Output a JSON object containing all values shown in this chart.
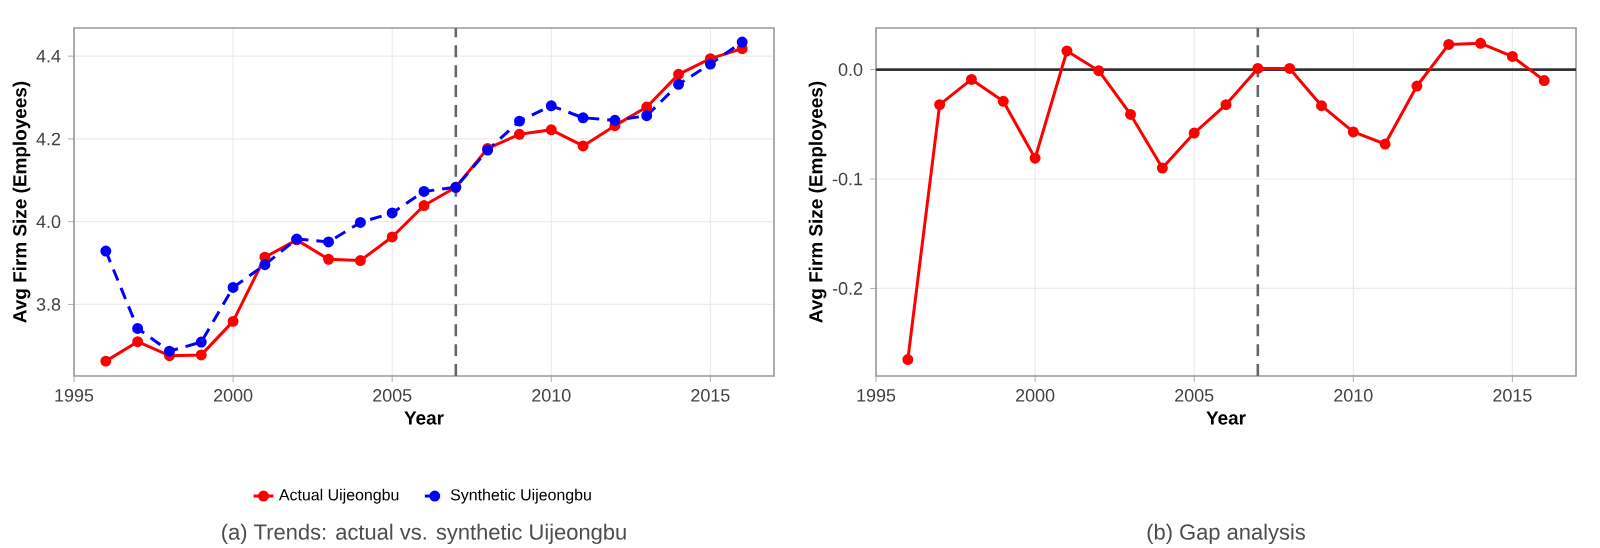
{
  "chart_data": [
    {
      "type": "line",
      "xlabel": "Year",
      "ylabel": "Avg Firm Size (Employees)",
      "x": [
        1996,
        1997,
        1998,
        1999,
        2000,
        2001,
        2002,
        2003,
        2004,
        2005,
        2006,
        2007,
        2008,
        2009,
        2010,
        2011,
        2012,
        2013,
        2014,
        2015,
        2016
      ],
      "series": [
        {
          "name": "Actual Uijeongbu",
          "color": "#ff0000",
          "line_style": "solid",
          "values": [
            3.663,
            3.71,
            3.676,
            3.678,
            3.759,
            3.914,
            3.956,
            3.909,
            3.906,
            3.963,
            4.039,
            4.083,
            4.177,
            4.211,
            4.222,
            4.183,
            4.232,
            4.277,
            4.356,
            4.394,
            4.418
          ]
        },
        {
          "name": "Synthetic Uijeongbu",
          "color": "#0000ff",
          "line_style": "dashed",
          "values": [
            3.929,
            3.742,
            3.687,
            3.709,
            3.841,
            3.896,
            3.958,
            3.951,
            3.998,
            4.021,
            4.073,
            4.083,
            4.173,
            4.243,
            4.28,
            4.251,
            4.245,
            4.256,
            4.332,
            4.381,
            4.434
          ]
        }
      ],
      "xlim": [
        1995,
        2017
      ],
      "ylim": [
        3.627,
        4.468
      ],
      "xticks": [
        1995,
        2000,
        2005,
        2010,
        2015
      ],
      "yticks": [
        {
          "value": 3.8,
          "label": "3.8"
        },
        {
          "value": 4.0,
          "label": "4.0"
        },
        {
          "value": 4.2,
          "label": "4.2"
        },
        {
          "value": 4.4,
          "label": "4.4"
        }
      ],
      "ref_lines": [
        {
          "axis": "x",
          "value": 2007,
          "color": "#666666",
          "line_style": "dashed"
        }
      ],
      "grid": true,
      "legend": "bottom",
      "marker": "circle",
      "annotations": [
        "(a) Trends: actual vs. synthetic Uijeongbu"
      ]
    },
    {
      "type": "line",
      "xlabel": "Year",
      "ylabel": "Avg Firm Size (Employees)",
      "x": [
        1996,
        1997,
        1998,
        1999,
        2000,
        2001,
        2002,
        2003,
        2004,
        2005,
        2006,
        2007,
        2008,
        2009,
        2010,
        2011,
        2012,
        2013,
        2014,
        2015,
        2016
      ],
      "series": [
        {
          "color": "#ff0000",
          "line_style": "solid",
          "values": [
            -0.265,
            -0.032,
            -0.009,
            -0.029,
            -0.081,
            0.017,
            -0.001,
            -0.041,
            -0.09,
            -0.058,
            -0.032,
            0.001,
            0.001,
            -0.033,
            -0.057,
            -0.068,
            -0.015,
            0.023,
            0.024,
            0.012,
            -0.01
          ]
        }
      ],
      "xlim": [
        1995,
        2017
      ],
      "ylim": [
        -0.28,
        0.038
      ],
      "xticks": [
        1995,
        2000,
        2005,
        2010,
        2015
      ],
      "yticks": [
        {
          "value": -0.2,
          "label": "-0.2"
        },
        {
          "value": -0.1,
          "label": "-0.1"
        },
        {
          "value": 0,
          "label": "0.0"
        }
      ],
      "ref_lines": [
        {
          "axis": "y",
          "value": 0,
          "color": "#333333",
          "line_style": "solid"
        },
        {
          "axis": "x",
          "value": 2007,
          "color": "#666666",
          "line_style": "dashed"
        }
      ],
      "grid": true,
      "marker": "circle",
      "annotations": [
        "(b) Gap analysis"
      ]
    }
  ]
}
